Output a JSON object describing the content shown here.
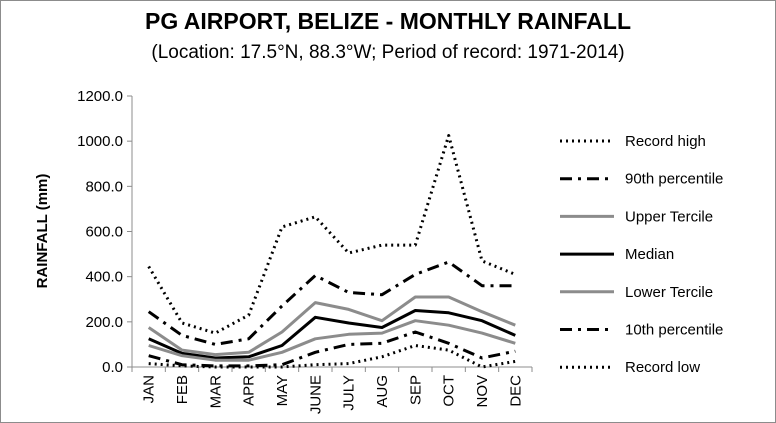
{
  "chart_data": {
    "type": "line",
    "title": "PG AIRPORT, BELIZE - MONTHLY RAINFALL",
    "subtitle": "(Location: 17.5°N, 88.3°W; Period of record: 1971-2014)",
    "xlabel": "",
    "ylabel": "RAINFALL (mm)",
    "ylim": [
      0,
      1200
    ],
    "yticks": [
      "0.0",
      "200.0",
      "400.0",
      "600.0",
      "800.0",
      "1000.0",
      "1200.0"
    ],
    "categories": [
      "JAN",
      "FEB",
      "MAR",
      "APR",
      "MAY",
      "JUNE",
      "JULY",
      "AUG",
      "SEP",
      "OCT",
      "NOV",
      "DEC"
    ],
    "grid": false,
    "legend_position": "right",
    "series": [
      {
        "name": "Record high",
        "style": "dotted",
        "color": "#000000",
        "values": [
          445,
          195,
          150,
          230,
          620,
          665,
          505,
          540,
          540,
          1025,
          470,
          410
        ]
      },
      {
        "name": "90th percentile",
        "style": "dashdot",
        "color": "#000000",
        "values": [
          245,
          140,
          100,
          125,
          270,
          405,
          330,
          320,
          410,
          465,
          360,
          360
        ]
      },
      {
        "name": "Upper Tercile",
        "style": "solid",
        "color": "#8c8c8c",
        "values": [
          175,
          75,
          55,
          65,
          155,
          285,
          255,
          205,
          310,
          310,
          245,
          185
        ]
      },
      {
        "name": "Median",
        "style": "solid",
        "color": "#000000",
        "values": [
          125,
          60,
          40,
          45,
          95,
          220,
          195,
          175,
          250,
          240,
          205,
          140
        ]
      },
      {
        "name": "Lower Tercile",
        "style": "solid",
        "color": "#8c8c8c",
        "values": [
          95,
          50,
          30,
          30,
          65,
          125,
          145,
          150,
          205,
          185,
          150,
          105
        ]
      },
      {
        "name": "10th percentile",
        "style": "dashdot",
        "color": "#000000",
        "values": [
          50,
          10,
          5,
          5,
          10,
          65,
          100,
          105,
          155,
          105,
          40,
          70
        ]
      },
      {
        "name": "Record low",
        "style": "dotted",
        "color": "#000000",
        "values": [
          15,
          5,
          0,
          0,
          0,
          10,
          15,
          45,
          95,
          75,
          0,
          25
        ]
      }
    ]
  }
}
